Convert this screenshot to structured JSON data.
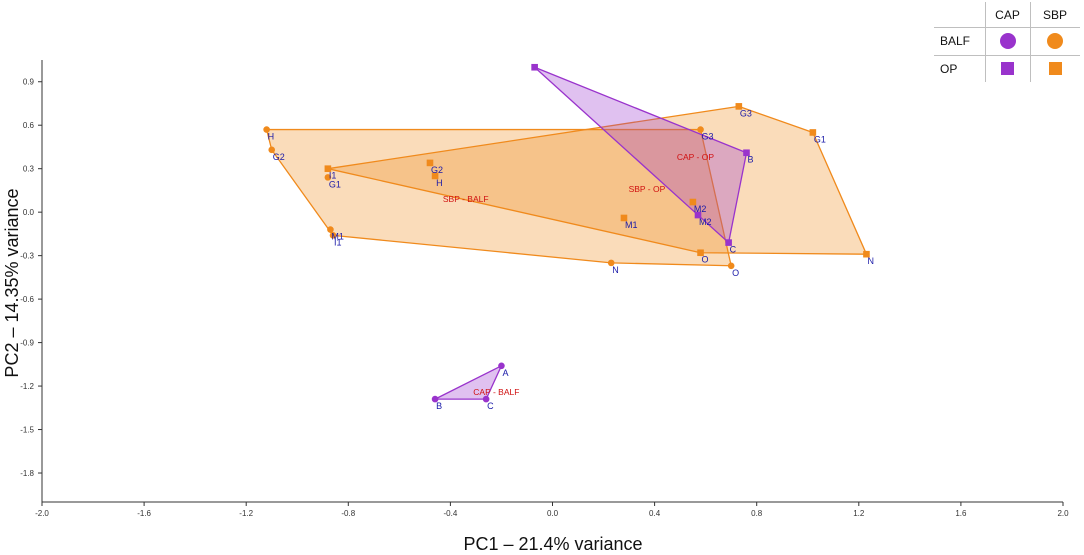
{
  "chart_data": {
    "type": "scatter",
    "title": "",
    "xlabel": "PC1 – 21.4% variance",
    "ylabel": "PC2 – 14.35% variance",
    "xlim": [
      -2.0,
      2.0
    ],
    "ylim": [
      -2.0,
      1.05
    ],
    "xticks": [
      "-2.0",
      "-1.6",
      "-1.2",
      "-0.8",
      "-0.4",
      "0.0",
      "0.4",
      "0.8",
      "1.2",
      "1.6",
      "2.0"
    ],
    "yticks": [
      "0.9",
      "0.6",
      "0.3",
      "0.0",
      "-0.3",
      "-0.6",
      "-0.9",
      "-1.2",
      "-1.5",
      "-1.8"
    ],
    "colors": {
      "CAP": "#9933cc",
      "SBP": "#f08a1c",
      "hull_label": "#d01010",
      "point_label": "#1a1aa8"
    },
    "groups": [
      {
        "name": "SBP - BALF",
        "group": "SBP",
        "sample": "BALF",
        "marker": "circle",
        "label_pos": [
          -0.34,
          0.07
        ],
        "points": [
          {
            "label": "H",
            "x": -1.12,
            "y": 0.57
          },
          {
            "label": "G2",
            "x": -1.1,
            "y": 0.43
          },
          {
            "label": "G1",
            "x": -0.88,
            "y": 0.24
          },
          {
            "label": "M1",
            "x": -0.87,
            "y": -0.12
          },
          {
            "label": "I1",
            "x": -0.86,
            "y": -0.16
          },
          {
            "label": "N",
            "x": 0.23,
            "y": -0.35
          },
          {
            "label": "O",
            "x": 0.7,
            "y": -0.37
          },
          {
            "label": "G3",
            "x": 0.58,
            "y": 0.57
          }
        ]
      },
      {
        "name": "SBP - OP",
        "group": "SBP",
        "sample": "OP",
        "marker": "square",
        "label_pos": [
          0.37,
          0.14
        ],
        "points": [
          {
            "label": "I1",
            "x": -0.88,
            "y": 0.3
          },
          {
            "label": "G2",
            "x": -0.48,
            "y": 0.34
          },
          {
            "label": "H",
            "x": -0.46,
            "y": 0.25
          },
          {
            "label": "M1",
            "x": 0.28,
            "y": -0.04
          },
          {
            "label": "M2",
            "x": 0.55,
            "y": 0.07
          },
          {
            "label": "O",
            "x": 0.58,
            "y": -0.28
          },
          {
            "label": "G3",
            "x": 0.73,
            "y": 0.73
          },
          {
            "label": "G1",
            "x": 1.02,
            "y": 0.55
          },
          {
            "label": "N",
            "x": 1.23,
            "y": -0.29
          }
        ]
      },
      {
        "name": "CAP - OP",
        "group": "CAP",
        "sample": "OP",
        "marker": "square",
        "label_pos": [
          0.56,
          0.36
        ],
        "points": [
          {
            "label": "",
            "x": -0.07,
            "y": 1.0
          },
          {
            "label": "M2",
            "x": 0.57,
            "y": -0.02
          },
          {
            "label": "C",
            "x": 0.69,
            "y": -0.21
          },
          {
            "label": "B",
            "x": 0.76,
            "y": 0.41
          }
        ]
      },
      {
        "name": "CAP - BALF",
        "group": "CAP",
        "sample": "BALF",
        "marker": "circle",
        "label_pos": [
          -0.22,
          -1.26
        ],
        "points": [
          {
            "label": "A",
            "x": -0.2,
            "y": -1.06
          },
          {
            "label": "B",
            "x": -0.46,
            "y": -1.29
          },
          {
            "label": "C",
            "x": -0.26,
            "y": -1.29
          }
        ]
      }
    ]
  },
  "legend": {
    "columns": [
      "CAP",
      "SBP"
    ],
    "rows": [
      "BALF",
      "OP"
    ]
  }
}
